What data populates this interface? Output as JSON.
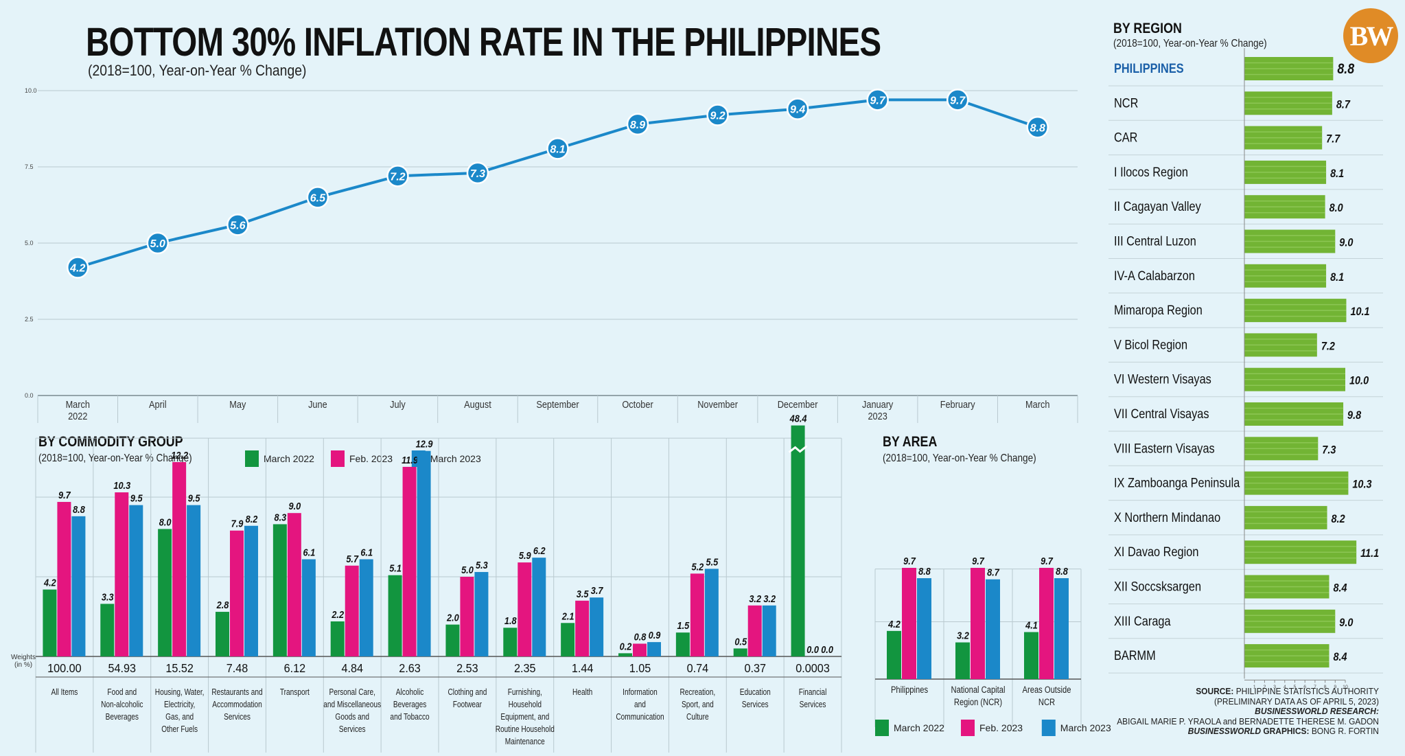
{
  "header": {
    "title": "BOTTOM 30% INFLATION RATE IN THE PHILIPPINES",
    "subtitle": "(2018=100, Year-on-Year % Change)",
    "logo_text": "BW"
  },
  "colors": {
    "line": "#1b88c9",
    "green": "#12953f",
    "magenta": "#e4157f",
    "blue": "#1b88c9",
    "region_bar": "#72b434",
    "background": "#e4f3f9"
  },
  "chart_data": [
    {
      "id": "line",
      "type": "line",
      "title": "BOTTOM 30% INFLATION RATE IN THE PHILIPPINES",
      "subtitle": "(2018=100, Year-on-Year % Change)",
      "categories": [
        [
          "March",
          "2022"
        ],
        [
          "April"
        ],
        [
          "May"
        ],
        [
          "June"
        ],
        [
          "July"
        ],
        [
          "August"
        ],
        [
          "September"
        ],
        [
          "October"
        ],
        [
          "November"
        ],
        [
          "December"
        ],
        [
          "January",
          "2023"
        ],
        [
          "February"
        ],
        [
          "March"
        ]
      ],
      "values": [
        4.2,
        5.0,
        5.6,
        6.5,
        7.2,
        7.3,
        8.1,
        8.9,
        9.2,
        9.4,
        9.7,
        9.7,
        8.8
      ],
      "labels": [
        "4.2",
        "5.0",
        "5.6",
        "6.5",
        "7.2",
        "7.3",
        "8.1",
        "8.9",
        "9.2",
        "9.4",
        "9.7",
        "9.7",
        "8.8"
      ],
      "yticks": [
        "0.0",
        "2.5",
        "5.0",
        "7.5",
        "10.0"
      ],
      "ylim": [
        0,
        10
      ]
    },
    {
      "id": "commodity",
      "type": "bar",
      "title": "BY COMMODITY GROUP",
      "subtitle": "(2018=100, Year-on-Year % Change)",
      "weights_label": [
        "Weights",
        "(in %)"
      ],
      "series_names": [
        "March 2022",
        "Feb. 2023",
        "March 2023"
      ],
      "categories": [
        {
          "name": [
            "All Items"
          ],
          "weight": "100.00",
          "values": [
            4.2,
            9.7,
            8.8
          ],
          "labels": [
            "4.2",
            "9.7",
            "8.8"
          ]
        },
        {
          "name": [
            "Food and",
            "Non-alcoholic",
            "Beverages"
          ],
          "weight": "54.93",
          "values": [
            3.3,
            10.3,
            9.5
          ],
          "labels": [
            "3.3",
            "10.3",
            "9.5"
          ]
        },
        {
          "name": [
            "Housing, Water,",
            "Electricity,",
            "Gas, and",
            "Other Fuels"
          ],
          "weight": "15.52",
          "values": [
            8.0,
            12.2,
            9.5
          ],
          "labels": [
            "8.0",
            "12.2",
            "9.5"
          ]
        },
        {
          "name": [
            "Restaurants and",
            "Accommodation",
            "Services"
          ],
          "weight": "7.48",
          "values": [
            2.8,
            7.9,
            8.2
          ],
          "labels": [
            "2.8",
            "7.9",
            "8.2"
          ]
        },
        {
          "name": [
            "Transport"
          ],
          "weight": "6.12",
          "values": [
            8.3,
            9.0,
            6.1
          ],
          "labels": [
            "8.3",
            "9.0",
            "6.1"
          ]
        },
        {
          "name": [
            "Personal Care,",
            "and Miscellaneous",
            "Goods and",
            "Services"
          ],
          "weight": "4.84",
          "values": [
            2.2,
            5.7,
            6.1
          ],
          "labels": [
            "2.2",
            "5.7",
            "6.1"
          ]
        },
        {
          "name": [
            "Alcoholic",
            "Beverages",
            "and Tobacco"
          ],
          "weight": "2.63",
          "values": [
            5.1,
            11.9,
            12.9
          ],
          "labels": [
            "5.1",
            "11.9",
            "12.9"
          ]
        },
        {
          "name": [
            "Clothing and",
            "Footwear"
          ],
          "weight": "2.53",
          "values": [
            2.0,
            5.0,
            5.3
          ],
          "labels": [
            "2.0",
            "5.0",
            "5.3"
          ]
        },
        {
          "name": [
            "Furnishing,",
            "Household",
            "Equipment, and",
            "Routine Household",
            "Maintenance"
          ],
          "weight": "2.35",
          "values": [
            1.8,
            5.9,
            6.2
          ],
          "labels": [
            "1.8",
            "5.9",
            "6.2"
          ]
        },
        {
          "name": [
            "Health"
          ],
          "weight": "1.44",
          "values": [
            2.1,
            3.5,
            3.7
          ],
          "labels": [
            "2.1",
            "3.5",
            "3.7"
          ]
        },
        {
          "name": [
            "Information",
            "and",
            "Communication"
          ],
          "weight": "1.05",
          "values": [
            0.2,
            0.8,
            0.9
          ],
          "labels": [
            "0.2",
            "0.8",
            "0.9"
          ]
        },
        {
          "name": [
            "Recreation,",
            "Sport, and",
            "Culture"
          ],
          "weight": "0.74",
          "values": [
            1.5,
            5.2,
            5.5
          ],
          "labels": [
            "1.5",
            "5.2",
            "5.5"
          ]
        },
        {
          "name": [
            "Education",
            "Services"
          ],
          "weight": "0.37",
          "values": [
            0.5,
            3.2,
            3.2
          ],
          "labels": [
            "0.5",
            "3.2",
            "3.2"
          ]
        },
        {
          "name": [
            "Financial",
            "Services"
          ],
          "weight": "0.0003",
          "values": [
            48.4,
            0.0,
            0.0
          ],
          "labels": [
            "48.4",
            "0.0",
            "0.0"
          ],
          "broken_axis": true
        }
      ],
      "ylim": [
        0,
        14
      ]
    },
    {
      "id": "area",
      "type": "bar",
      "title": "BY AREA",
      "subtitle": "(2018=100, Year-on-Year % Change)",
      "series_names": [
        "March 2022",
        "Feb. 2023",
        "March 2023"
      ],
      "categories": [
        {
          "name": [
            "Philippines"
          ],
          "values": [
            4.2,
            9.7,
            8.8
          ],
          "labels": [
            "4.2",
            "9.7",
            "8.8"
          ]
        },
        {
          "name": [
            "National Capital",
            "Region (NCR)"
          ],
          "values": [
            3.2,
            9.7,
            8.7
          ],
          "labels": [
            "3.2",
            "9.7",
            "8.7"
          ]
        },
        {
          "name": [
            "Areas Outside",
            "NCR"
          ],
          "values": [
            4.1,
            9.7,
            8.8
          ],
          "labels": [
            "4.1",
            "9.7",
            "8.8"
          ]
        }
      ],
      "ylim": [
        0,
        11
      ]
    },
    {
      "id": "region",
      "type": "bar",
      "orientation": "horizontal",
      "title": "BY REGION",
      "subtitle": "(2018=100, Year-on-Year % Change)",
      "categories": [
        "PHILIPPINES",
        "NCR",
        "CAR",
        "I Ilocos Region",
        "II Cagayan Valley",
        "III Central Luzon",
        "IV-A Calabarzon",
        "Mimaropa Region",
        "V Bicol Region",
        "VI Western Visayas",
        "VII Central Visayas",
        "VIII Eastern Visayas",
        "IX Zamboanga Peninsula",
        "X Northern Mindanao",
        "XI Davao Region",
        "XII Soccsksargen",
        "XIII Caraga",
        "BARMM"
      ],
      "values": [
        8.8,
        8.7,
        7.7,
        8.1,
        8.0,
        9.0,
        8.1,
        10.1,
        7.2,
        10.0,
        9.8,
        7.3,
        10.3,
        8.2,
        11.1,
        8.4,
        9.0,
        8.4
      ],
      "labels": [
        "8.8",
        "8.7",
        "7.7",
        "8.1",
        "8.0",
        "9.0",
        "8.1",
        "10.1",
        "7.2",
        "10.0",
        "9.8",
        "7.3",
        "10.3",
        "8.2",
        "11.1",
        "8.4",
        "9.0",
        "8.4"
      ],
      "xticks": [
        "1",
        "2",
        "3",
        "4",
        "5",
        "6",
        "7",
        "8",
        "9",
        "10"
      ],
      "xlim": [
        0,
        11.1
      ]
    }
  ],
  "credits": {
    "source_label": "SOURCE:",
    "source_text": "PHILIPPINE STATISTICS AUTHORITY",
    "source_note": "(PRELIMINARY DATA AS OF APRIL 5, 2023)",
    "research_label": "BUSINESSWORLD RESEARCH:",
    "research_names": "ABIGAIL MARIE P. YRAOLA and BERNADETTE THERESE M. GADON",
    "graphics_label_a": "BUSINESSWORLD",
    "graphics_label_b": "GRAPHICS:",
    "graphics_name": "BONG R. FORTIN"
  }
}
